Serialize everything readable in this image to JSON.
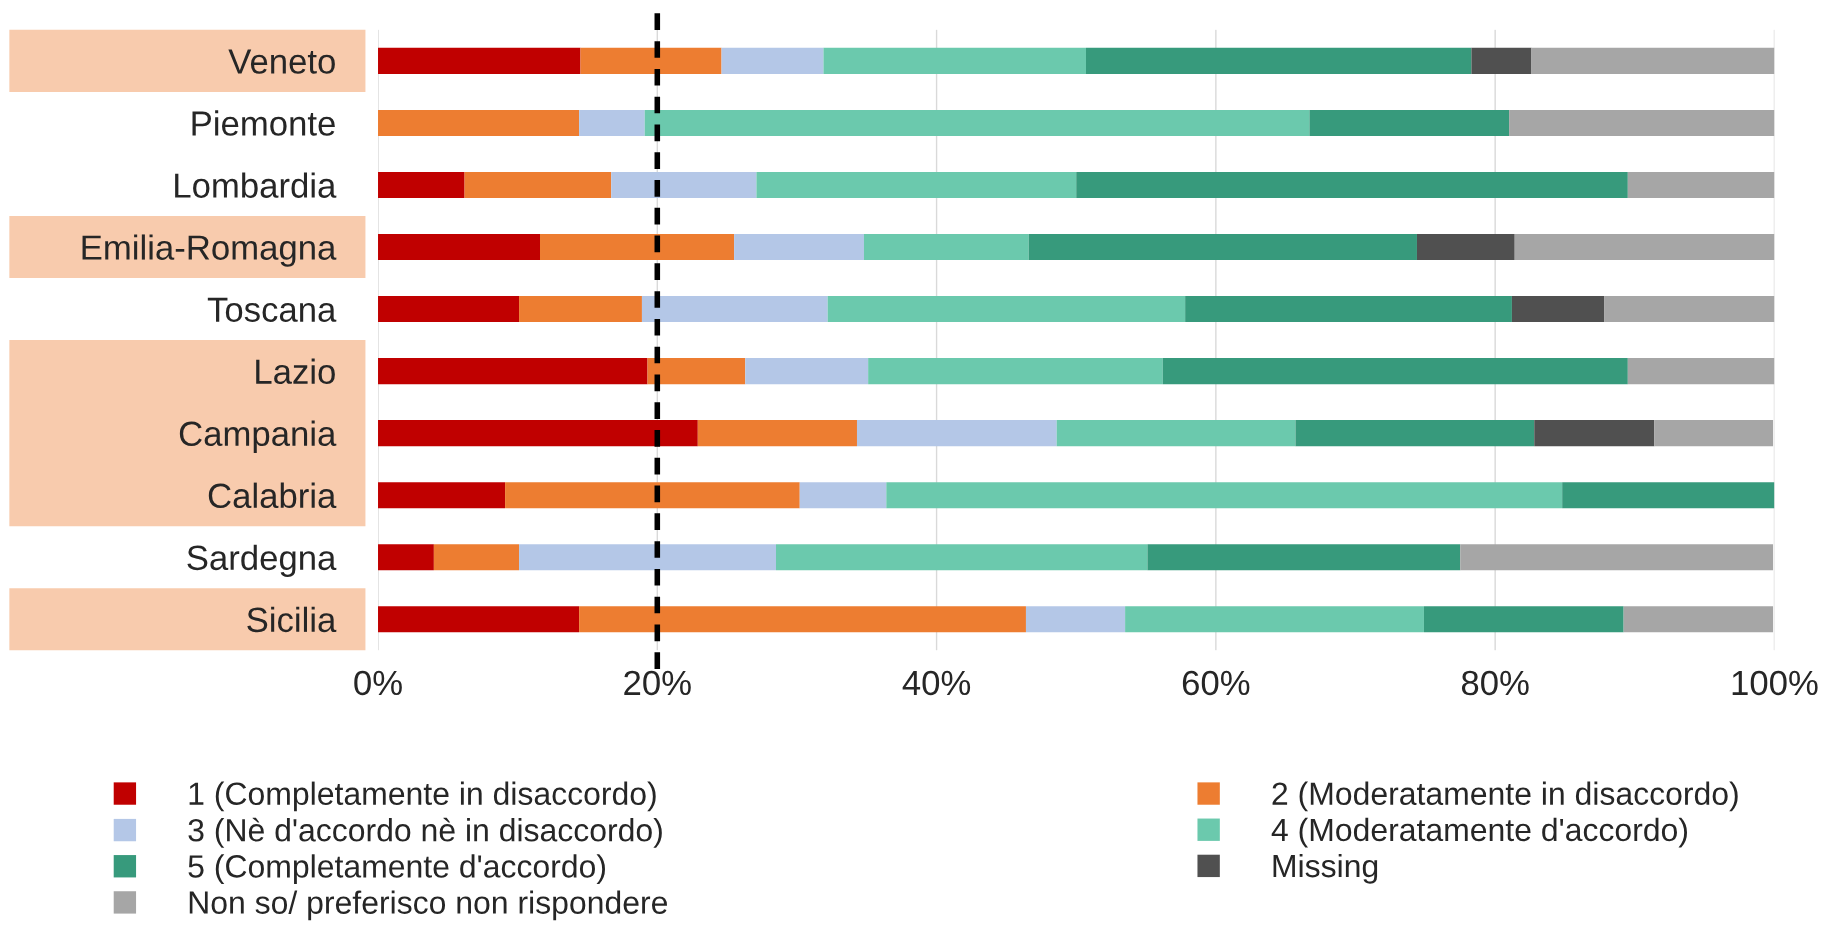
{
  "chart_data": {
    "type": "bar",
    "orientation": "horizontal",
    "stacked": true,
    "categories": [
      "Veneto",
      "Piemonte",
      "Lombardia",
      "Emilia-Romagna",
      "Toscana",
      "Lazio",
      "Campania",
      "Calabria",
      "Sardegna",
      "Sicilia"
    ],
    "series": [
      {
        "name": "1 (Completamente in disaccordo)",
        "color": "#c00000",
        "values": [
          14.5,
          0,
          6.2,
          11.6,
          10.1,
          19.3,
          22.9,
          9.1,
          4.0,
          14.4
        ]
      },
      {
        "name": "2 (Moderatamente in disaccordo)",
        "color": "#ed7d31",
        "values": [
          10.1,
          14.4,
          10.5,
          13.9,
          8.8,
          7.0,
          11.4,
          21.1,
          6.1,
          32.0
        ]
      },
      {
        "name": "3 (Nè d'accordo nè in disaccordo)",
        "color": "#b4c7e7",
        "values": [
          7.3,
          4.7,
          10.4,
          9.3,
          13.3,
          8.8,
          14.3,
          6.2,
          18.4,
          7.1
        ]
      },
      {
        "name": "4 (Moderatamente d'accordo)",
        "color": "#6bc9ad",
        "values": [
          18.8,
          47.6,
          22.9,
          11.8,
          25.6,
          21.1,
          17.1,
          48.4,
          26.6,
          21.4
        ]
      },
      {
        "name": "5 (Completamente d'accordo)",
        "color": "#379a7c",
        "values": [
          27.6,
          14.3,
          39.5,
          27.8,
          23.4,
          33.3,
          17.1,
          15.2,
          22.4,
          14.3
        ]
      },
      {
        "name": "Missing",
        "color": "#505050",
        "values": [
          4.3,
          0,
          0,
          7.0,
          6.6,
          0,
          8.6,
          0,
          0,
          0
        ]
      },
      {
        "name": "Non so/ preferisco non rispondere",
        "color": "#a6a6a6",
        "values": [
          17.4,
          19.0,
          10.5,
          18.6,
          12.2,
          10.5,
          8.5,
          0,
          22.4,
          10.7
        ]
      }
    ],
    "xlim": [
      0,
      100
    ],
    "xticks": [
      {
        "value": 0,
        "label": "0%"
      },
      {
        "value": 20,
        "label": "20%"
      },
      {
        "value": 40,
        "label": "40%"
      },
      {
        "value": 60,
        "label": "60%"
      },
      {
        "value": 80,
        "label": "80%"
      },
      {
        "value": 100,
        "label": "100%"
      }
    ],
    "ref_lines": [
      {
        "axis": "x",
        "value": 20,
        "color": "#000000",
        "line_style": "dashed"
      }
    ],
    "grid": "x",
    "legend": "bottom"
  }
}
